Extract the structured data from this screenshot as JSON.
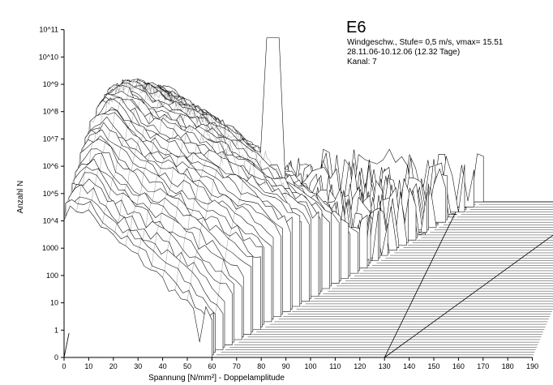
{
  "chart_data": {
    "type": "surface-3d",
    "title": "E6",
    "annotations": [
      "Windgeschw., Stufe= 0,5 m/s, vmax= 15.51",
      "28.11.06-10.12.06 (12.32 Tage)",
      "Kanal: 7"
    ],
    "xlabel": "Spannung [N/mm²] - Doppelamplitude",
    "ylabel": "Anzahl N",
    "x_ticks": [
      "0",
      "10",
      "20",
      "30",
      "40",
      "50",
      "60",
      "70",
      "80",
      "90",
      "100",
      "110",
      "120",
      "130",
      "140",
      "150",
      "160",
      "170",
      "180",
      "190"
    ],
    "y_ticks": [
      "0",
      "1",
      "10",
      "100",
      "1000",
      "10^4",
      "10^5",
      "10^6",
      "10^7",
      "10^8",
      "10^9",
      "10^10",
      "10^11"
    ],
    "x_range": [
      0,
      190
    ],
    "y_scale": "log",
    "depth_axis": "Windgeschwindigkeit (Stufe 0,5 m/s, bis 15.51 m/s)",
    "grid": false,
    "colors": {
      "line": "#000000",
      "face": "#ffffff",
      "background": "#ffffff"
    }
  }
}
